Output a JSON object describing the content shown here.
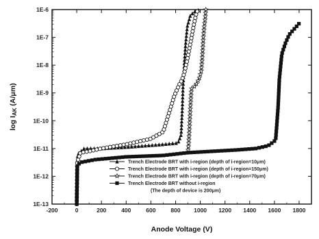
{
  "chart_data": {
    "type": "line",
    "title": "",
    "xlabel": "Anode Voltage (V)",
    "ylabel": "log I",
    "ylabel_sub": "AK",
    "ylabel_unit": " (A/μm)",
    "xlim": [
      -200,
      1900
    ],
    "ylim_exp": [
      -13,
      -6
    ],
    "log_y": true,
    "grid": false,
    "legend_position": "bottom-right",
    "x_ticks": [
      "-200",
      "0",
      "200",
      "400",
      "600",
      "800",
      "1000",
      "1200",
      "1400",
      "1600",
      "1800"
    ],
    "x_tick_values": [
      -200,
      0,
      200,
      400,
      600,
      800,
      1000,
      1200,
      1400,
      1600,
      1800
    ],
    "y_ticks": [
      "1E-13",
      "1E-12",
      "1E-11",
      "1E-10",
      "1E-9",
      "1E-8",
      "1E-7",
      "1E-6"
    ],
    "y_tick_exps": [
      -13,
      -12,
      -11,
      -10,
      -9,
      -8,
      -7,
      -6
    ],
    "legend_note": "(The depth of device is 200μm)",
    "series": [
      {
        "name": "Trench Electrode BRT with i-region (depth of i-region=10μm)",
        "marker": "triangle",
        "points": [
          [
            0,
            -13
          ],
          [
            3,
            -12
          ],
          [
            8,
            -11.2
          ],
          [
            60,
            -11.0
          ],
          [
            200,
            -11.0
          ],
          [
            400,
            -10.95
          ],
          [
            700,
            -10.85
          ],
          [
            820,
            -10.8
          ],
          [
            845,
            -10.5
          ],
          [
            855,
            -9.5
          ],
          [
            860,
            -8.8
          ],
          [
            870,
            -8.0
          ],
          [
            880,
            -7.3
          ],
          [
            895,
            -6.6
          ],
          [
            920,
            -6.2
          ],
          [
            960,
            -6.05
          ],
          [
            1000,
            -6.0
          ]
        ]
      },
      {
        "name": "Trench Electrode BRT with i-region (depth of i-region=150μm)",
        "marker": "circle",
        "points": [
          [
            0,
            -13
          ],
          [
            4,
            -11.5
          ],
          [
            30,
            -11.15
          ],
          [
            100,
            -11.1
          ],
          [
            200,
            -11.0
          ],
          [
            400,
            -10.85
          ],
          [
            600,
            -10.65
          ],
          [
            700,
            -10.4
          ],
          [
            790,
            -9.1
          ],
          [
            830,
            -8.7
          ],
          [
            850,
            -8.55
          ],
          [
            870,
            -8.3
          ],
          [
            895,
            -7.8
          ],
          [
            925,
            -7.1
          ],
          [
            950,
            -6.5
          ],
          [
            970,
            -6.1
          ],
          [
            985,
            -6.0
          ]
        ]
      },
      {
        "name": "Trench Electrode BRT with i-region (depth of i-region=70μm)",
        "marker": "star",
        "points": [
          [
            1045,
            -6.0
          ],
          [
            1040,
            -6.3
          ],
          [
            1032,
            -6.6
          ],
          [
            1025,
            -7.0
          ],
          [
            1020,
            -7.4
          ],
          [
            1015,
            -7.8
          ],
          [
            1008,
            -8.2
          ],
          [
            990,
            -8.5
          ],
          [
            965,
            -8.7
          ],
          [
            945,
            -8.8
          ],
          [
            928,
            -8.85
          ],
          [
            920,
            -9.5
          ],
          [
            915,
            -10.0
          ],
          [
            910,
            -10.5
          ],
          [
            905,
            -10.9
          ],
          [
            900,
            -11.1
          ]
        ]
      },
      {
        "name": "Trench Electrode BRT without i-region",
        "marker": "square",
        "points": [
          [
            0,
            -13
          ],
          [
            5,
            -11.6
          ],
          [
            30,
            -11.5
          ],
          [
            150,
            -11.4
          ],
          [
            400,
            -11.3
          ],
          [
            700,
            -11.25
          ],
          [
            900,
            -11.15
          ],
          [
            1100,
            -11.1
          ],
          [
            1300,
            -11.05
          ],
          [
            1450,
            -11.0
          ],
          [
            1550,
            -10.9
          ],
          [
            1610,
            -10.7
          ],
          [
            1630,
            -9.5
          ],
          [
            1640,
            -8.5
          ],
          [
            1660,
            -7.6
          ],
          [
            1690,
            -7.2
          ],
          [
            1720,
            -6.9
          ],
          [
            1760,
            -6.7
          ],
          [
            1800,
            -6.5
          ]
        ]
      }
    ]
  }
}
